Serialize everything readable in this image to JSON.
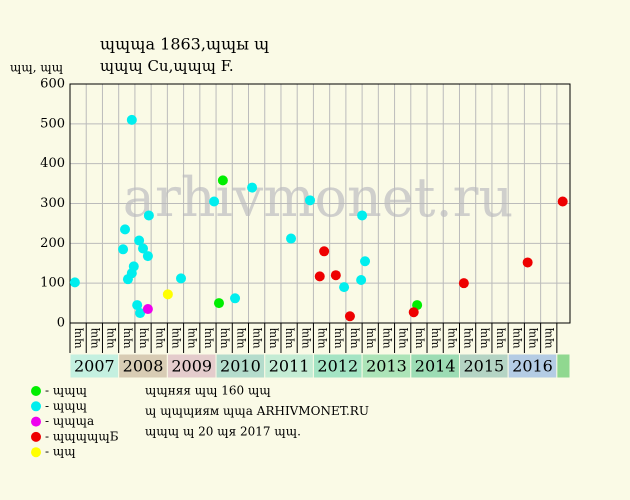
{
  "chart_data": {
    "type": "scatter",
    "title": "ɰɰɰa 1863,ɰɰы ɰ",
    "subtitle": "ɰɰɰ Cu,ɰɰɰ F.",
    "y_label": "ɰɰ, ɰɰ",
    "watermark": "arhivmonet.ru",
    "notes": [
      "ɰɰняя ɰɰ 160 ɰɰ",
      "ɰ ɰɰɰиям ɰɰa ARHIVMONET.RU",
      "ɰɰɰ ɰ 20 ɰя 2017 ɰɰ."
    ],
    "ylim": [
      0,
      600
    ],
    "yticks": [
      0,
      100,
      200,
      300,
      400,
      500,
      600
    ],
    "xlim": [
      2007,
      2017.27
    ],
    "grid": true,
    "years": [
      2007,
      2008,
      2009,
      2010,
      2011,
      2012,
      2013,
      2014,
      2015,
      2016
    ],
    "year_colors": [
      "#c4f0e0",
      "#d8ccb4",
      "#e4cccc",
      "#b4dccc",
      "#c4ecd4",
      "#a4e4c4",
      "#ace4b8",
      "#9cdcb4",
      "#b4d4c4",
      "#b4cce4"
    ],
    "period_labels": [
      "ɰɰ",
      "ɰɰ",
      "ɰɰ",
      "ɰɰ",
      "ɰɰ",
      "ɰɰ",
      "ɰɰ",
      "ɰɰ",
      "ɰɰ",
      "ɰɰ",
      "ɰɰ",
      "ɰɰ",
      "ɰɰ",
      "ɰɰ",
      "ɰɰ",
      "ɰɰ",
      "ɰɰ",
      "ɰɰ",
      "ɰɰ",
      "ɰɰ",
      "ɰɰ",
      "ɰɰ",
      "ɰɰ",
      "ɰɰ",
      "ɰɰ",
      "ɰɰ",
      "ɰɰ",
      "ɰɰ",
      "ɰɰ",
      "ɰɰ"
    ],
    "series": [
      {
        "name": "- ɰɰɰ",
        "color": "#00ee00",
        "x": [
          2010.14,
          2010.06,
          2014.13
        ],
        "values": [
          358,
          50,
          45
        ]
      },
      {
        "name": "- ɰɰɰ",
        "color": "#00eeee",
        "x": [
          2007.1,
          2008.27,
          2008.13,
          2008.09,
          2008.19,
          2008.31,
          2008.27,
          2008.38,
          2008.44,
          2008.42,
          2008.5,
          2008.6,
          2008.62,
          2009.28,
          2009.96,
          2010.39,
          2010.74,
          2011.54,
          2011.93,
          2012.63,
          2013.0,
          2013.06,
          2012.98
        ],
        "values": [
          102,
          510,
          235,
          185,
          110,
          142,
          125,
          45,
          25,
          207,
          187,
          168,
          270,
          112,
          305,
          62,
          340,
          212,
          308,
          90,
          270,
          155,
          108
        ]
      },
      {
        "name": "- ɰɰɰa",
        "color": "#ee00ee",
        "x": [
          2008.6
        ],
        "values": [
          35
        ]
      },
      {
        "name": "- ɰɰɰɰɰБ",
        "color": "#ee0000",
        "x": [
          2012.22,
          2012.13,
          2012.46,
          2012.75,
          2014.06,
          2015.09,
          2016.4,
          2017.12
        ],
        "values": [
          180,
          117,
          120,
          17,
          27,
          100,
          152,
          305
        ]
      },
      {
        "name": "- ɰɰ",
        "color": "#ffff00",
        "x": [
          2009.01
        ],
        "values": [
          72
        ]
      }
    ]
  }
}
